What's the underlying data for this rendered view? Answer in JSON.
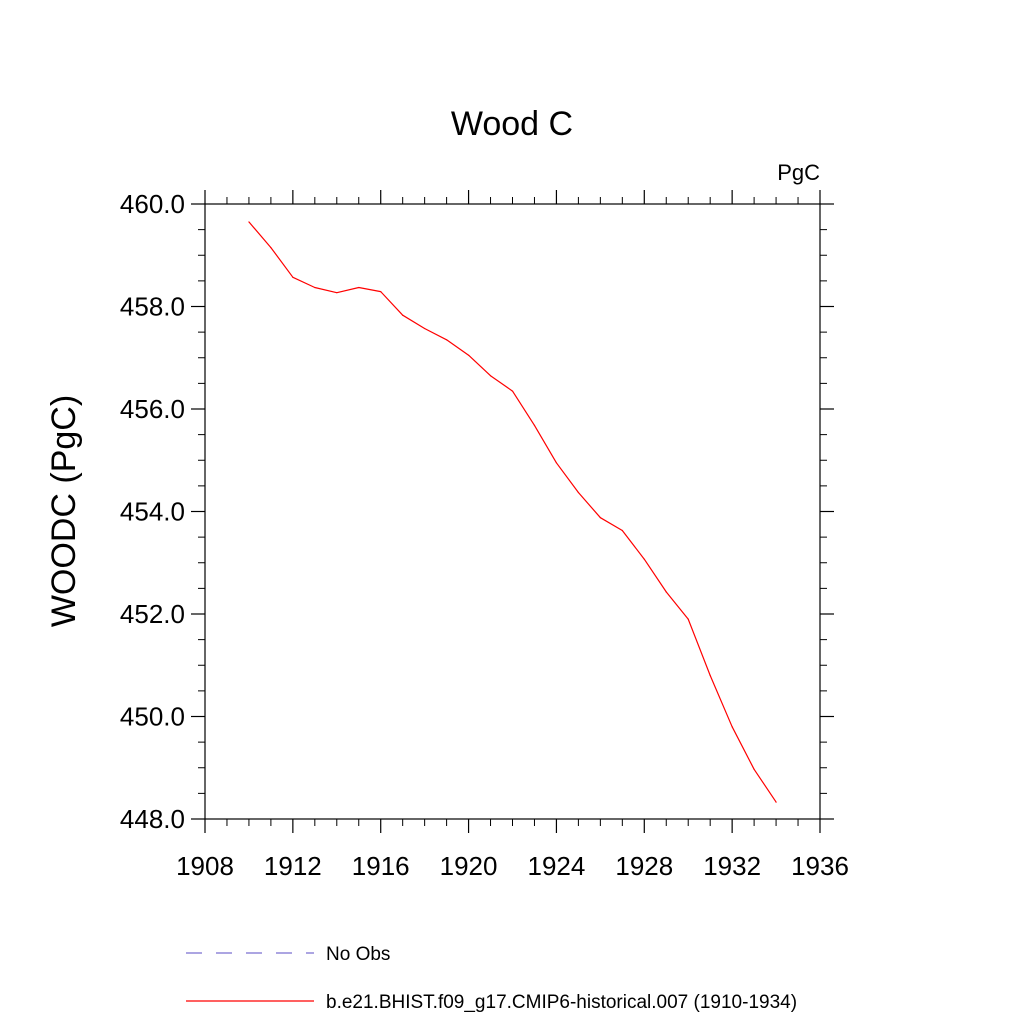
{
  "chart_data": {
    "type": "line",
    "title": "Wood C",
    "units": "PgC",
    "xlabel": "",
    "ylabel": "WOODC  (PgC)",
    "xlim": [
      1908,
      1936
    ],
    "ylim": [
      448.0,
      460.0
    ],
    "x_ticks": [
      1908,
      1912,
      1916,
      1920,
      1924,
      1928,
      1932,
      1936
    ],
    "x_tick_labels": [
      "1908",
      "1912",
      "1916",
      "1920",
      "1924",
      "1928",
      "1932",
      "1936"
    ],
    "y_ticks": [
      448.0,
      450.0,
      452.0,
      454.0,
      456.0,
      458.0,
      460.0
    ],
    "y_tick_labels": [
      "448.0",
      "450.0",
      "452.0",
      "454.0",
      "456.0",
      "458.0",
      "460.0"
    ],
    "series": [
      {
        "name": "b.e21.BHIST.f09_g17.CMIP6-historical.007 (1910-1934)",
        "color": "#ff0000",
        "dash": "solid",
        "x": [
          1910,
          1911,
          1912,
          1913,
          1914,
          1915,
          1916,
          1917,
          1918,
          1919,
          1920,
          1921,
          1922,
          1923,
          1924,
          1925,
          1926,
          1927,
          1928,
          1929,
          1930,
          1931,
          1932,
          1933,
          1934
        ],
        "values": [
          459.65,
          459.15,
          458.57,
          458.37,
          458.27,
          458.37,
          458.29,
          457.83,
          457.57,
          457.35,
          457.05,
          456.65,
          456.35,
          455.68,
          454.95,
          454.37,
          453.88,
          453.63,
          453.07,
          452.43,
          451.9,
          450.8,
          449.8,
          448.97,
          448.33
        ]
      }
    ],
    "legend": [
      {
        "label": "No Obs",
        "color": "#7b6fd0",
        "dash": "dashed"
      },
      {
        "label": "b.e21.BHIST.f09_g17.CMIP6-historical.007 (1910-1934)",
        "color": "#ff0000",
        "dash": "solid"
      }
    ]
  }
}
